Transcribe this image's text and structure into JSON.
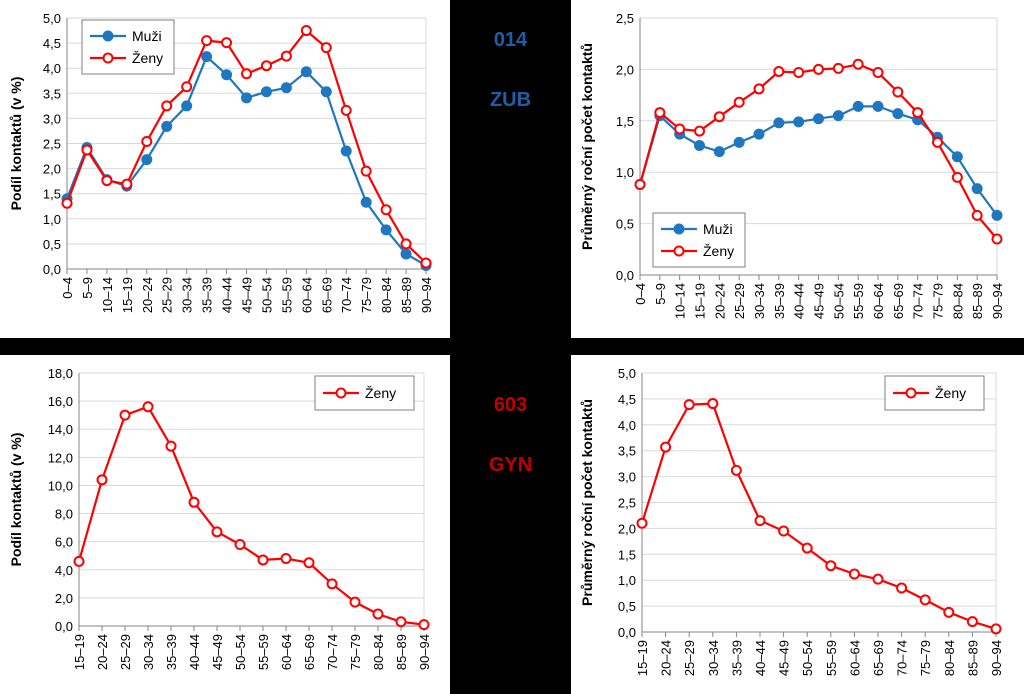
{
  "center": {
    "top_code": "014",
    "top_abbr": "ZUB",
    "top_color": "#1F5FA8",
    "bottom_code": "603",
    "bottom_abbr": "GYN",
    "bottom_color": "#C00000"
  },
  "colors": {
    "muzi": "#1F77C0",
    "zeny": "#FF0000"
  },
  "chart_data": [
    {
      "type": "line",
      "ylabel": "Podíl kontaktů (v %)",
      "ylim": [
        0,
        5
      ],
      "yticks": [
        "0,0",
        "0,5",
        "1,0",
        "1,5",
        "2,0",
        "2,5",
        "3,0",
        "3,5",
        "4,0",
        "4,5",
        "5,0"
      ],
      "categories": [
        "0–4",
        "5–9",
        "10–14",
        "15–19",
        "20–24",
        "25–29",
        "30–34",
        "35–39",
        "40–44",
        "45–49",
        "50–54",
        "55–59",
        "60–64",
        "65–69",
        "70–74",
        "75–79",
        "80–84",
        "85–89",
        "90–94"
      ],
      "legend_position": "top-left",
      "series": [
        {
          "name": "Muži",
          "color_key": "muzi",
          "marker": "filled",
          "values": [
            1.4,
            2.42,
            1.78,
            1.65,
            2.18,
            2.84,
            3.25,
            4.23,
            3.87,
            3.41,
            3.53,
            3.61,
            3.93,
            3.53,
            2.35,
            1.33,
            0.78,
            0.3,
            0.07
          ]
        },
        {
          "name": "Ženy",
          "color_key": "zeny",
          "marker": "open",
          "values": [
            1.31,
            2.37,
            1.76,
            1.69,
            2.54,
            3.25,
            3.63,
            4.55,
            4.51,
            3.89,
            4.05,
            4.24,
            4.75,
            4.41,
            3.16,
            1.95,
            1.18,
            0.5,
            0.12
          ]
        }
      ]
    },
    {
      "type": "line",
      "ylabel": "Průměrný roční počet kontaktů",
      "ylim": [
        0,
        2.5
      ],
      "yticks": [
        "0,0",
        "0,5",
        "1,0",
        "1,5",
        "2,0",
        "2,5"
      ],
      "categories": [
        "0–4",
        "5–9",
        "10–14",
        "15–19",
        "20–24",
        "25–29",
        "30–34",
        "35–39",
        "40–44",
        "45–49",
        "50–54",
        "55–59",
        "60–64",
        "65–69",
        "70–74",
        "75–79",
        "80–84",
        "85–89",
        "90–94"
      ],
      "legend_position": "bottom-left",
      "series": [
        {
          "name": "Muži",
          "color_key": "muzi",
          "marker": "filled",
          "values": [
            0.88,
            1.55,
            1.37,
            1.26,
            1.2,
            1.29,
            1.37,
            1.48,
            1.49,
            1.52,
            1.55,
            1.64,
            1.64,
            1.57,
            1.51,
            1.34,
            1.15,
            0.84,
            0.58
          ]
        },
        {
          "name": "Ženy",
          "color_key": "zeny",
          "marker": "open",
          "values": [
            0.88,
            1.58,
            1.42,
            1.4,
            1.54,
            1.68,
            1.81,
            1.98,
            1.97,
            2.0,
            2.01,
            2.05,
            1.97,
            1.78,
            1.58,
            1.29,
            0.95,
            0.58,
            0.35
          ]
        }
      ]
    },
    {
      "type": "line",
      "ylabel": "Podíl kontaktů (v %)",
      "ylim": [
        0,
        18
      ],
      "yticks": [
        "0,0",
        "2,0",
        "4,0",
        "6,0",
        "8,0",
        "10,0",
        "12,0",
        "14,0",
        "16,0",
        "18,0"
      ],
      "categories": [
        "15–19",
        "20–24",
        "25–29",
        "30–34",
        "35–39",
        "40–44",
        "45–49",
        "50–54",
        "55–59",
        "60–64",
        "65–69",
        "70–74",
        "75–79",
        "80–84",
        "85–89",
        "90–94"
      ],
      "legend_position": "top-right",
      "series": [
        {
          "name": "Ženy",
          "color_key": "zeny",
          "marker": "open",
          "values": [
            4.6,
            10.4,
            15.0,
            15.6,
            12.8,
            8.8,
            6.7,
            5.8,
            4.7,
            4.8,
            4.5,
            3.0,
            1.7,
            0.85,
            0.3,
            0.1
          ]
        }
      ]
    },
    {
      "type": "line",
      "ylabel": "Průměrný roční počet kontaktů",
      "ylim": [
        0,
        5
      ],
      "yticks": [
        "0,0",
        "0,5",
        "1,0",
        "1,5",
        "2,0",
        "2,5",
        "3,0",
        "3,5",
        "4,0",
        "4,5",
        "5,0"
      ],
      "categories": [
        "15–19",
        "20–24",
        "25–29",
        "30–34",
        "35–39",
        "40–44",
        "45–49",
        "50–54",
        "55–59",
        "60–64",
        "65–69",
        "70–74",
        "75–79",
        "80–84",
        "85–89",
        "90–94"
      ],
      "legend_position": "top-right",
      "series": [
        {
          "name": "Ženy",
          "color_key": "zeny",
          "marker": "open",
          "values": [
            2.1,
            3.57,
            4.39,
            4.41,
            3.12,
            2.15,
            1.95,
            1.62,
            1.28,
            1.12,
            1.02,
            0.85,
            0.62,
            0.38,
            0.2,
            0.06
          ]
        }
      ]
    }
  ]
}
